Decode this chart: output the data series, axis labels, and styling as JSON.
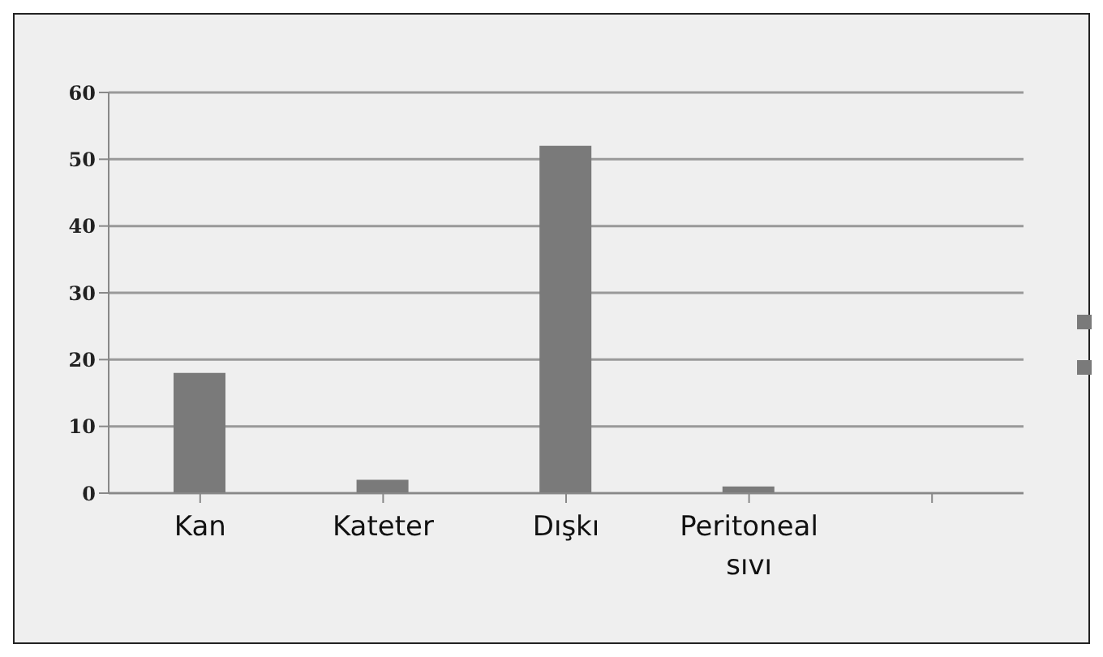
{
  "chart_data": {
    "type": "bar",
    "categories": [
      "Kan",
      "Kateter",
      "Dışkı",
      "Peritoneal sıvı",
      null
    ],
    "values": [
      18,
      2,
      52,
      1,
      null
    ],
    "color": "#7a7a7a",
    "ylim": [
      0,
      60
    ],
    "yticks": [
      0,
      10,
      20,
      30,
      40,
      50,
      60
    ],
    "grid": "y"
  }
}
